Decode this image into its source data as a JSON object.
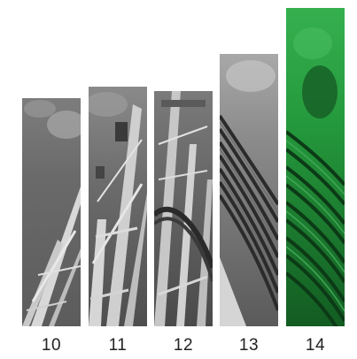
{
  "panels": [
    {
      "label": "10",
      "tint": "gray"
    },
    {
      "label": "11",
      "tint": "gray"
    },
    {
      "label": "12",
      "tint": "gray"
    },
    {
      "label": "13",
      "tint": "gray"
    },
    {
      "label": "14",
      "tint": "green"
    }
  ],
  "colors": {
    "gray_sky": "#9a9a9a",
    "gray_dark": "#555555",
    "green_sky": "#2fa84a",
    "green_dark": "#0f4a1c",
    "label_text": "#222222"
  }
}
